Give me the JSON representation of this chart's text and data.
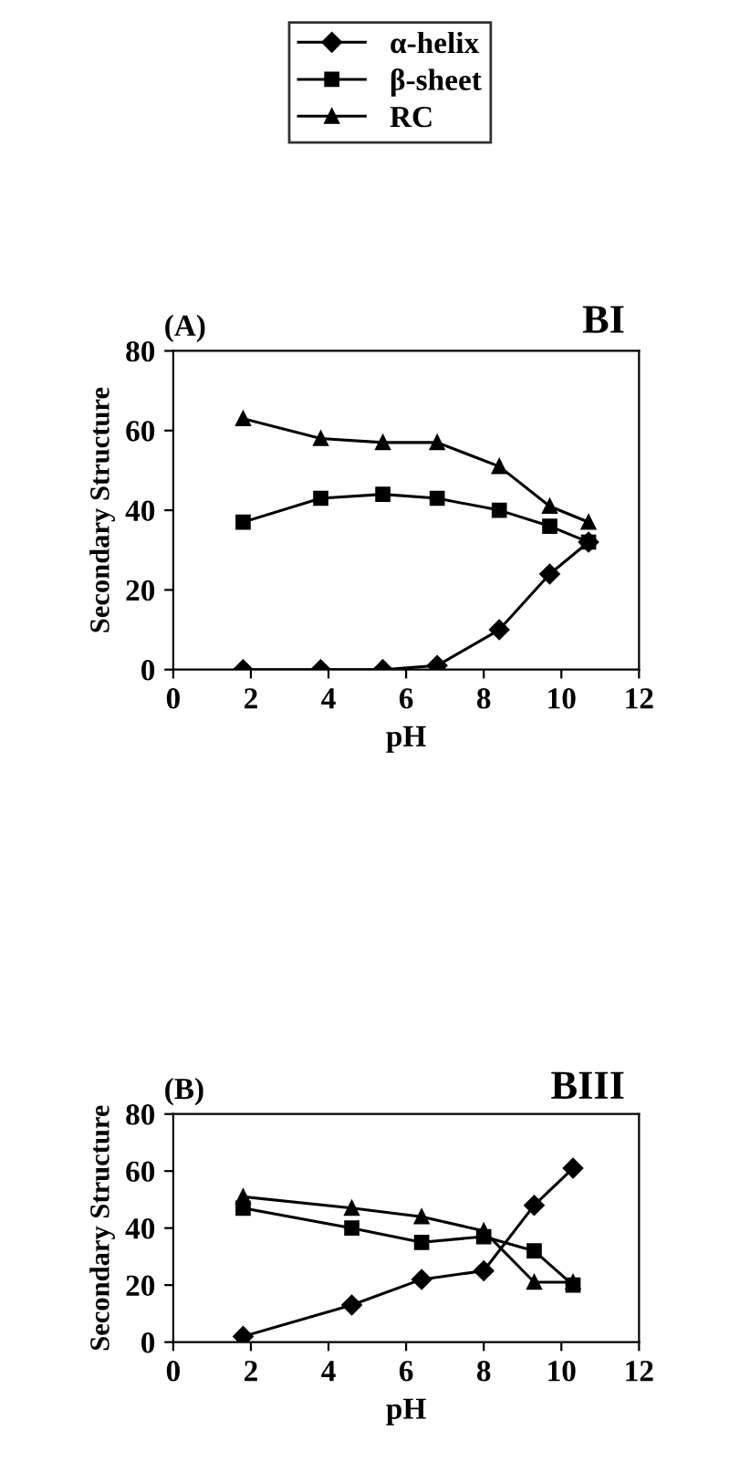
{
  "chart_data": [
    {
      "type": "line",
      "title": "(A)",
      "annotations": [
        "BI"
      ],
      "xlabel": "pH",
      "ylabel": "Secondary Structure",
      "xlim": [
        0,
        12
      ],
      "xticks": [
        0,
        2,
        4,
        6,
        8,
        10,
        12
      ],
      "ylim": [
        0,
        80
      ],
      "yticks": [
        0,
        20,
        40,
        60,
        80
      ],
      "legend": "top",
      "line_style": "solid",
      "grid": false,
      "series": [
        {
          "name": "α-helix",
          "color": "#000000",
          "marker": "diamond",
          "x": [
            1.8,
            3.8,
            5.4,
            6.8,
            8.4,
            9.7,
            10.7
          ],
          "values": [
            0,
            0,
            0,
            1,
            10,
            24,
            32
          ]
        },
        {
          "name": "β-sheet",
          "color": "#000000",
          "marker": "square",
          "x": [
            1.8,
            3.8,
            5.4,
            6.8,
            8.4,
            9.7,
            10.7
          ],
          "values": [
            37,
            43,
            44,
            43,
            40,
            36,
            32
          ]
        },
        {
          "name": "RC",
          "color": "#000000",
          "marker": "triangle",
          "x": [
            1.8,
            3.8,
            5.4,
            6.8,
            8.4,
            9.7,
            10.7
          ],
          "values": [
            63,
            58,
            57,
            57,
            51,
            41,
            37
          ]
        }
      ]
    },
    {
      "type": "line",
      "title": "(B)",
      "annotations": [
        "BIII"
      ],
      "xlabel": "pH",
      "ylabel": "Secondary Structure",
      "xlim": [
        0,
        12
      ],
      "xticks": [
        0,
        2,
        4,
        6,
        8,
        10,
        12
      ],
      "ylim": [
        0,
        80
      ],
      "yticks": [
        0,
        20,
        40,
        60,
        80
      ],
      "line_style": "solid",
      "grid": false,
      "series": [
        {
          "color": "#000000",
          "marker": "diamond",
          "x": [
            1.8,
            4.6,
            6.4,
            8.0,
            9.3,
            10.3
          ],
          "values": [
            2,
            13,
            22,
            25,
            48,
            61
          ]
        },
        {
          "color": "#000000",
          "marker": "square",
          "x": [
            1.8,
            4.6,
            6.4,
            8.0,
            9.3,
            10.3
          ],
          "values": [
            47,
            40,
            35,
            37,
            32,
            20
          ]
        },
        {
          "color": "#000000",
          "marker": "triangle",
          "x": [
            1.8,
            4.6,
            6.4,
            8.0,
            9.3,
            10.3
          ],
          "values": [
            51,
            47,
            44,
            39,
            21,
            21
          ]
        }
      ]
    }
  ]
}
